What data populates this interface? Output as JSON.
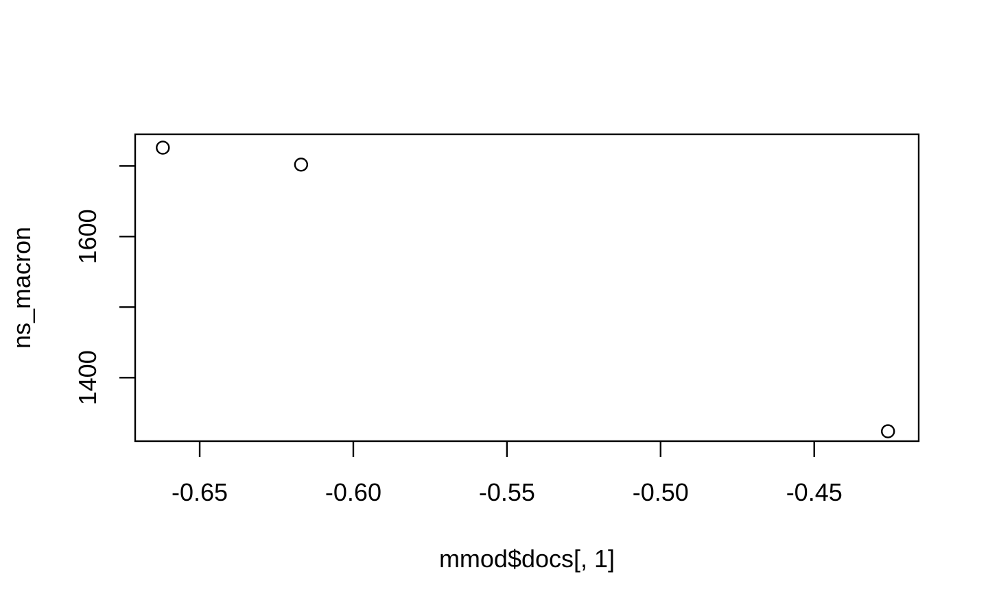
{
  "chart_data": {
    "type": "scatter",
    "title": "",
    "xlabel": "mmod$docs[, 1]",
    "ylabel": "ns_macron",
    "xlim": [
      -0.671,
      -0.416
    ],
    "ylim": [
      1310,
      1745
    ],
    "x_ticks": [
      -0.65,
      -0.6,
      -0.55,
      -0.5,
      -0.45
    ],
    "x_tick_labels": [
      "-0.65",
      "-0.60",
      "-0.55",
      "-0.50",
      "-0.45"
    ],
    "y_ticks": [
      1400,
      1500,
      1600,
      1700
    ],
    "y_tick_labels": [
      "1400",
      "",
      "1600",
      ""
    ],
    "grid": false,
    "legend": "none",
    "marker": "open-circle",
    "points": [
      {
        "x": -0.662,
        "y": 1726
      },
      {
        "x": -0.617,
        "y": 1702
      },
      {
        "x": -0.426,
        "y": 1324
      }
    ],
    "colors": {
      "axis": "#000000",
      "marker": "#000000",
      "background": "#ffffff"
    }
  }
}
